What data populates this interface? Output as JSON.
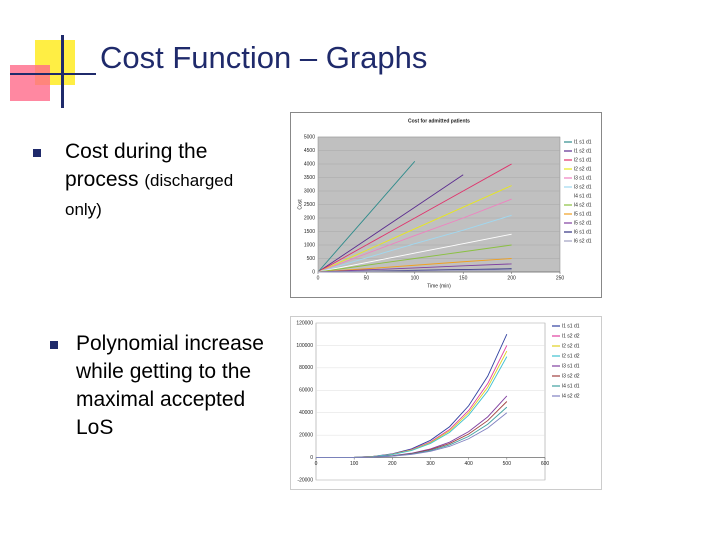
{
  "slide": {
    "title": "Cost Function – Graphs",
    "bullets": [
      {
        "text": "Cost during the process",
        "note": "(discharged only)"
      },
      {
        "text": "Polynomial increase while getting to the maximal accepted LoS"
      }
    ]
  },
  "chart_data": [
    {
      "type": "line",
      "title": "Cost for admitted patients",
      "x_label": "Time (min)",
      "y_label": "Cost",
      "x": [
        0,
        50,
        100,
        150,
        200
      ],
      "xlim": [
        0,
        250
      ],
      "xticks": [
        0,
        50,
        100,
        150,
        200,
        250
      ],
      "ylim": [
        0,
        5000
      ],
      "yticks": [
        0,
        500,
        1000,
        1500,
        2000,
        2500,
        3000,
        3500,
        4000,
        4500,
        5000
      ],
      "plot_background": "#c0c0c0",
      "grid": true,
      "series": [
        {
          "name": "l1 s1 d1",
          "color": "#2e8b8b",
          "values": [
            0,
            2050,
            4100,
            null,
            null
          ]
        },
        {
          "name": "l1 s2 d1",
          "color": "#5b2c8f",
          "values": [
            0,
            1200,
            2400,
            3600,
            null
          ]
        },
        {
          "name": "l2 s1 d1",
          "color": "#e0316b",
          "values": [
            0,
            1000,
            2000,
            3000,
            4000
          ]
        },
        {
          "name": "l2 s2 d1",
          "color": "#e8e81a",
          "values": [
            0,
            800,
            1600,
            2400,
            3200
          ]
        },
        {
          "name": "l3 s1 d1",
          "color": "#f080c0",
          "values": [
            0,
            680,
            1350,
            2000,
            2700
          ]
        },
        {
          "name": "l3 s2 d1",
          "color": "#a0d8f0",
          "values": [
            0,
            520,
            1050,
            1550,
            2100
          ]
        },
        {
          "name": "l4 s1 d1",
          "color": "#ffffff",
          "values": [
            0,
            350,
            700,
            1050,
            1400
          ]
        },
        {
          "name": "l4 s2 d1",
          "color": "#8ac040",
          "values": [
            0,
            250,
            500,
            750,
            1000
          ]
        },
        {
          "name": "l5 s1 d1",
          "color": "#f0a020",
          "values": [
            0,
            120,
            250,
            380,
            500
          ]
        },
        {
          "name": "l5 s2 d1",
          "color": "#8040a0",
          "values": [
            0,
            80,
            150,
            230,
            300
          ]
        },
        {
          "name": "l6 s1 d1",
          "color": "#303080",
          "values": [
            0,
            30,
            60,
            90,
            120
          ]
        },
        {
          "name": "l6 s2 d1",
          "color": "#a0a0c0",
          "values": [
            0,
            20,
            40,
            60,
            80
          ]
        }
      ]
    },
    {
      "type": "line",
      "x": [
        0,
        50,
        100,
        150,
        200,
        250,
        300,
        350,
        400,
        450,
        500
      ],
      "xlim": [
        0,
        600
      ],
      "xticks": [
        0,
        100,
        200,
        300,
        400,
        500,
        600
      ],
      "ylim": [
        -20000,
        120000
      ],
      "yticks": [
        -20000,
        0,
        20000,
        40000,
        60000,
        80000,
        100000,
        120000
      ],
      "plot_background": "#ffffff",
      "grid": true,
      "series": [
        {
          "name": "l1 s1 d1",
          "color": "#3040a0",
          "values": [
            0,
            0,
            220,
            1100,
            3300,
            7700,
            15400,
            27500,
            46200,
            72600,
            110000
          ]
        },
        {
          "name": "l1 s2 d2",
          "color": "#e040a0",
          "values": [
            0,
            0,
            200,
            1000,
            3000,
            7000,
            14000,
            25000,
            42000,
            66000,
            100000
          ]
        },
        {
          "name": "l2 s2 d1",
          "color": "#e0d020",
          "values": [
            0,
            0,
            190,
            950,
            2850,
            6650,
            13300,
            23750,
            39900,
            62700,
            95000
          ]
        },
        {
          "name": "l2 s1 d2",
          "color": "#40c0d0",
          "values": [
            0,
            0,
            180,
            900,
            2700,
            6300,
            12600,
            22500,
            37800,
            59400,
            90000
          ]
        },
        {
          "name": "l3 s1 d1",
          "color": "#8040a0",
          "values": [
            0,
            0,
            110,
            550,
            1650,
            3850,
            7700,
            13750,
            23100,
            36300,
            55000
          ]
        },
        {
          "name": "l3 s2 d2",
          "color": "#a04040",
          "values": [
            0,
            0,
            100,
            500,
            1500,
            3500,
            7000,
            12500,
            21000,
            33000,
            50000
          ]
        },
        {
          "name": "l4 s1 d1",
          "color": "#40a0a0",
          "values": [
            0,
            0,
            90,
            450,
            1350,
            3150,
            6300,
            11250,
            18900,
            29700,
            45000
          ]
        },
        {
          "name": "l4 s2 d2",
          "color": "#8080c0",
          "values": [
            0,
            0,
            80,
            400,
            1200,
            2800,
            5600,
            10000,
            16800,
            26400,
            40000
          ]
        }
      ]
    }
  ]
}
